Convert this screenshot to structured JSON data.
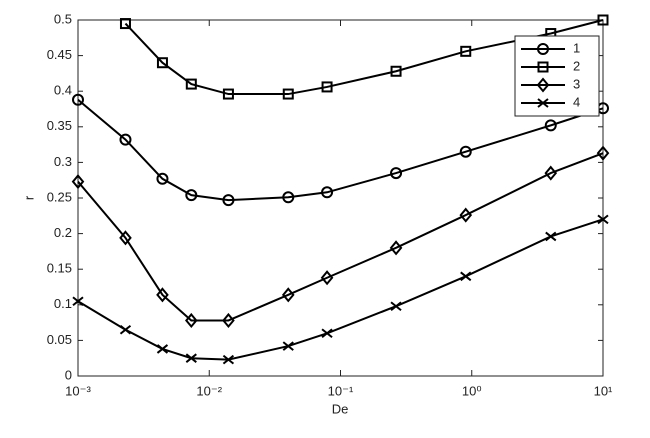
{
  "chart_data": {
    "type": "line",
    "xlabel": "De",
    "ylabel": "r",
    "xscale": "log",
    "x": [
      0.001,
      0.0023,
      0.0044,
      0.0073,
      0.014,
      0.04,
      0.079,
      0.265,
      0.9,
      4,
      10
    ],
    "series": [
      {
        "name": "1",
        "color": "#000000",
        "marker": "circle",
        "values": [
          0.388,
          0.332,
          0.277,
          0.254,
          0.247,
          0.251,
          0.258,
          0.285,
          0.315,
          0.352,
          0.376
        ]
      },
      {
        "name": "2",
        "color": "#000000",
        "marker": "square",
        "values": [
          null,
          0.495,
          0.44,
          0.41,
          0.396,
          0.396,
          0.406,
          0.428,
          0.456,
          0.481,
          0.5
        ]
      },
      {
        "name": "3",
        "color": "#000000",
        "marker": "diamond",
        "values": [
          0.273,
          0.194,
          0.114,
          0.078,
          0.078,
          0.114,
          0.138,
          0.18,
          0.226,
          0.285,
          0.313
        ]
      },
      {
        "name": "4",
        "color": "#000000",
        "marker": "x",
        "values": [
          0.105,
          0.065,
          0.038,
          0.025,
          0.023,
          0.042,
          0.06,
          0.098,
          0.14,
          0.196,
          0.22
        ]
      }
    ],
    "xlim": [
      0.001,
      10
    ],
    "xticks": [
      {
        "value": 0.001,
        "label": "10⁻³"
      },
      {
        "value": 0.01,
        "label": "10⁻²"
      },
      {
        "value": 0.1,
        "label": "10⁻¹"
      },
      {
        "value": 1,
        "label": "10⁰"
      },
      {
        "value": 10,
        "label": "10¹"
      }
    ],
    "ylim": [
      0,
      0.5
    ],
    "yticks": [
      0,
      0.05,
      0.1,
      0.15,
      0.2,
      0.25,
      0.3,
      0.35,
      0.4,
      0.45,
      0.5
    ],
    "legend": "northeast"
  }
}
